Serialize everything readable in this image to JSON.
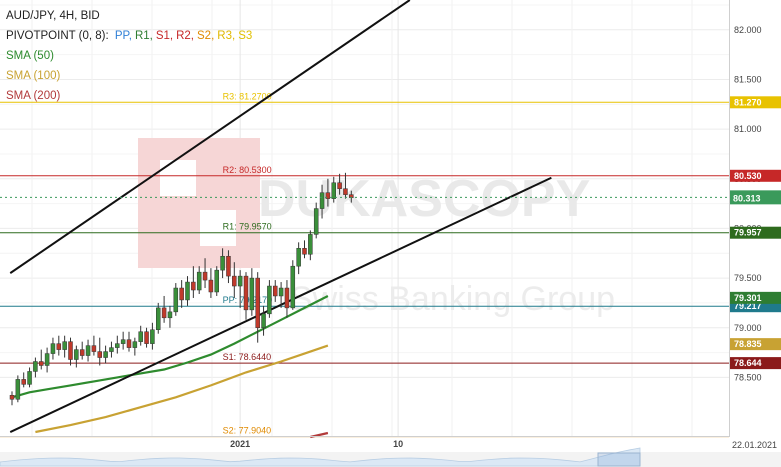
{
  "header": {
    "symbol": "AUD/JPY, 4H, BID",
    "pivot_prefix": "PIVOTPOINT (0, 8):",
    "pivot_items": [
      {
        "label": "PP,",
        "color": "#2f7fd6"
      },
      {
        "label": "R1,",
        "color": "#2e7d32"
      },
      {
        "label": "S1,",
        "color": "#c62828"
      },
      {
        "label": "R2,",
        "color": "#c62828"
      },
      {
        "label": "S2,",
        "color": "#e08a00"
      },
      {
        "label": "R3,",
        "color": "#e0b800"
      },
      {
        "label": "S3",
        "color": "#e0c000"
      }
    ],
    "sma": [
      {
        "label": "SMA (50)",
        "color": "#2e8b2e"
      },
      {
        "label": "SMA (100)",
        "color": "#c8a233"
      },
      {
        "label": "SMA (200)",
        "color": "#b23a3a"
      }
    ]
  },
  "watermark": {
    "main": "DUKASCOPY",
    "sub": "Swiss Banking Group"
  },
  "chart_data": {
    "type": "candlestick",
    "ylim": [
      77.9,
      82.3
    ],
    "y_ticks": [
      78.5,
      79.0,
      79.5,
      80.0,
      80.5,
      81.0,
      81.5,
      82.0
    ],
    "y_tick_labels": [
      "78.500",
      "79.000",
      "79.500",
      "80.000",
      "80.500",
      "81.000",
      "81.500",
      "82.000"
    ],
    "x_tick_labels": [
      {
        "label": "2021",
        "bar": 39
      },
      {
        "label": "10",
        "bar": 66
      }
    ],
    "date_label": "22.01.2021",
    "current_price": {
      "value": 80.313,
      "label": "80.313",
      "color": "#3a9a5b"
    },
    "pivot_levels": [
      {
        "name": "R3",
        "label": "R3: 81.2700",
        "value": 81.27,
        "tag": "81.270",
        "color": "#e8c200"
      },
      {
        "name": "R2",
        "label": "R2: 80.5300",
        "value": 80.53,
        "tag": "80.530",
        "color": "#c62828"
      },
      {
        "name": "R1",
        "label": "R1: 79.9570",
        "value": 79.957,
        "tag": "79.957",
        "color": "#2e6b1e"
      },
      {
        "name": "PP",
        "label": "PP: 79.2170",
        "value": 79.217,
        "tag": "79.217",
        "color": "#1f7a8c"
      },
      {
        "name": "S1",
        "label": "S1: 78.6440",
        "value": 78.644,
        "tag": "78.644",
        "color": "#8b1a1a"
      },
      {
        "name": "S2",
        "label": "S2: 77.9040",
        "value": 77.904,
        "tag": "",
        "color": "#e08a00"
      }
    ],
    "sma_tags": [
      {
        "label": "79.301",
        "value": 79.301,
        "color": "#2e7d32"
      },
      {
        "label": "78.835",
        "value": 78.835,
        "color": "#c8a233"
      }
    ],
    "sma50": [
      [
        0,
        78.3
      ],
      [
        3,
        78.35
      ],
      [
        6,
        78.38
      ],
      [
        10,
        78.42
      ],
      [
        14,
        78.46
      ],
      [
        18,
        78.5
      ],
      [
        22,
        78.54
      ],
      [
        26,
        78.58
      ],
      [
        30,
        78.65
      ],
      [
        34,
        78.73
      ],
      [
        38,
        78.84
      ],
      [
        42,
        78.96
      ],
      [
        46,
        79.08
      ],
      [
        50,
        79.2
      ],
      [
        54,
        79.32
      ]
    ],
    "sma100": [
      [
        4,
        77.95
      ],
      [
        10,
        78.02
      ],
      [
        16,
        78.1
      ],
      [
        22,
        78.2
      ],
      [
        28,
        78.3
      ],
      [
        34,
        78.42
      ],
      [
        40,
        78.55
      ],
      [
        46,
        78.66
      ],
      [
        50,
        78.74
      ],
      [
        54,
        78.82
      ]
    ],
    "sma200": [
      [
        51,
        77.9
      ],
      [
        54,
        77.94
      ]
    ],
    "trendlines": [
      {
        "from": [
          -0.3,
          79.55
        ],
        "to": [
          68.0,
          82.3
        ]
      },
      {
        "from": [
          -0.3,
          77.95
        ],
        "to": [
          92.2,
          80.51
        ]
      }
    ],
    "candles": [
      [
        78.32,
        78.36,
        78.22,
        78.28
      ],
      [
        78.28,
        78.52,
        78.25,
        78.48
      ],
      [
        78.48,
        78.55,
        78.4,
        78.43
      ],
      [
        78.43,
        78.6,
        78.4,
        78.56
      ],
      [
        78.56,
        78.7,
        78.5,
        78.66
      ],
      [
        78.66,
        78.78,
        78.58,
        78.62
      ],
      [
        78.62,
        78.8,
        78.55,
        78.74
      ],
      [
        78.74,
        78.9,
        78.68,
        78.84
      ],
      [
        78.84,
        78.92,
        78.72,
        78.78
      ],
      [
        78.78,
        78.92,
        78.7,
        78.86
      ],
      [
        78.86,
        78.9,
        78.62,
        78.68
      ],
      [
        78.68,
        78.82,
        78.6,
        78.78
      ],
      [
        78.78,
        78.86,
        78.68,
        78.72
      ],
      [
        78.72,
        78.88,
        78.66,
        78.82
      ],
      [
        78.82,
        78.92,
        78.72,
        78.76
      ],
      [
        78.76,
        78.9,
        78.62,
        78.7
      ],
      [
        78.7,
        78.82,
        78.64,
        78.76
      ],
      [
        78.76,
        78.86,
        78.7,
        78.8
      ],
      [
        78.8,
        78.92,
        78.74,
        78.84
      ],
      [
        78.84,
        78.96,
        78.78,
        78.88
      ],
      [
        78.88,
        78.96,
        78.76,
        78.8
      ],
      [
        78.8,
        78.9,
        78.72,
        78.86
      ],
      [
        78.86,
        79.02,
        78.82,
        78.96
      ],
      [
        78.96,
        79.0,
        78.8,
        78.84
      ],
      [
        78.84,
        79.05,
        78.78,
        78.98
      ],
      [
        78.98,
        79.25,
        78.94,
        79.2
      ],
      [
        79.2,
        79.32,
        79.05,
        79.1
      ],
      [
        79.1,
        79.22,
        79.0,
        79.16
      ],
      [
        79.16,
        79.45,
        79.12,
        79.4
      ],
      [
        79.4,
        79.48,
        79.2,
        79.28
      ],
      [
        79.28,
        79.52,
        79.22,
        79.46
      ],
      [
        79.46,
        79.62,
        79.3,
        79.38
      ],
      [
        79.38,
        79.62,
        79.34,
        79.56
      ],
      [
        79.56,
        79.7,
        79.4,
        79.48
      ],
      [
        79.48,
        79.6,
        79.3,
        79.36
      ],
      [
        79.36,
        79.62,
        79.32,
        79.58
      ],
      [
        79.58,
        79.8,
        79.5,
        79.72
      ],
      [
        79.72,
        79.78,
        79.45,
        79.52
      ],
      [
        79.52,
        79.66,
        79.3,
        79.42
      ],
      [
        79.42,
        79.58,
        79.2,
        79.52
      ],
      [
        79.52,
        79.56,
        79.08,
        79.18
      ],
      [
        79.18,
        79.6,
        79.12,
        79.5
      ],
      [
        79.5,
        79.56,
        78.85,
        79.0
      ],
      [
        79.0,
        79.22,
        78.92,
        79.14
      ],
      [
        79.14,
        79.48,
        79.1,
        79.42
      ],
      [
        79.42,
        79.48,
        79.26,
        79.32
      ],
      [
        79.32,
        79.46,
        79.2,
        79.4
      ],
      [
        79.4,
        79.48,
        79.1,
        79.2
      ],
      [
        79.2,
        79.68,
        79.18,
        79.62
      ],
      [
        79.62,
        79.86,
        79.54,
        79.8
      ],
      [
        79.8,
        79.88,
        79.7,
        79.74
      ],
      [
        79.74,
        79.98,
        79.68,
        79.94
      ],
      [
        79.94,
        80.26,
        79.9,
        80.2
      ],
      [
        80.2,
        80.44,
        80.1,
        80.36
      ],
      [
        80.36,
        80.5,
        80.22,
        80.3
      ],
      [
        80.3,
        80.52,
        80.26,
        80.46
      ],
      [
        80.46,
        80.55,
        80.34,
        80.4
      ],
      [
        80.4,
        80.56,
        80.3,
        80.34
      ],
      [
        80.34,
        80.38,
        80.26,
        80.31
      ]
    ]
  }
}
